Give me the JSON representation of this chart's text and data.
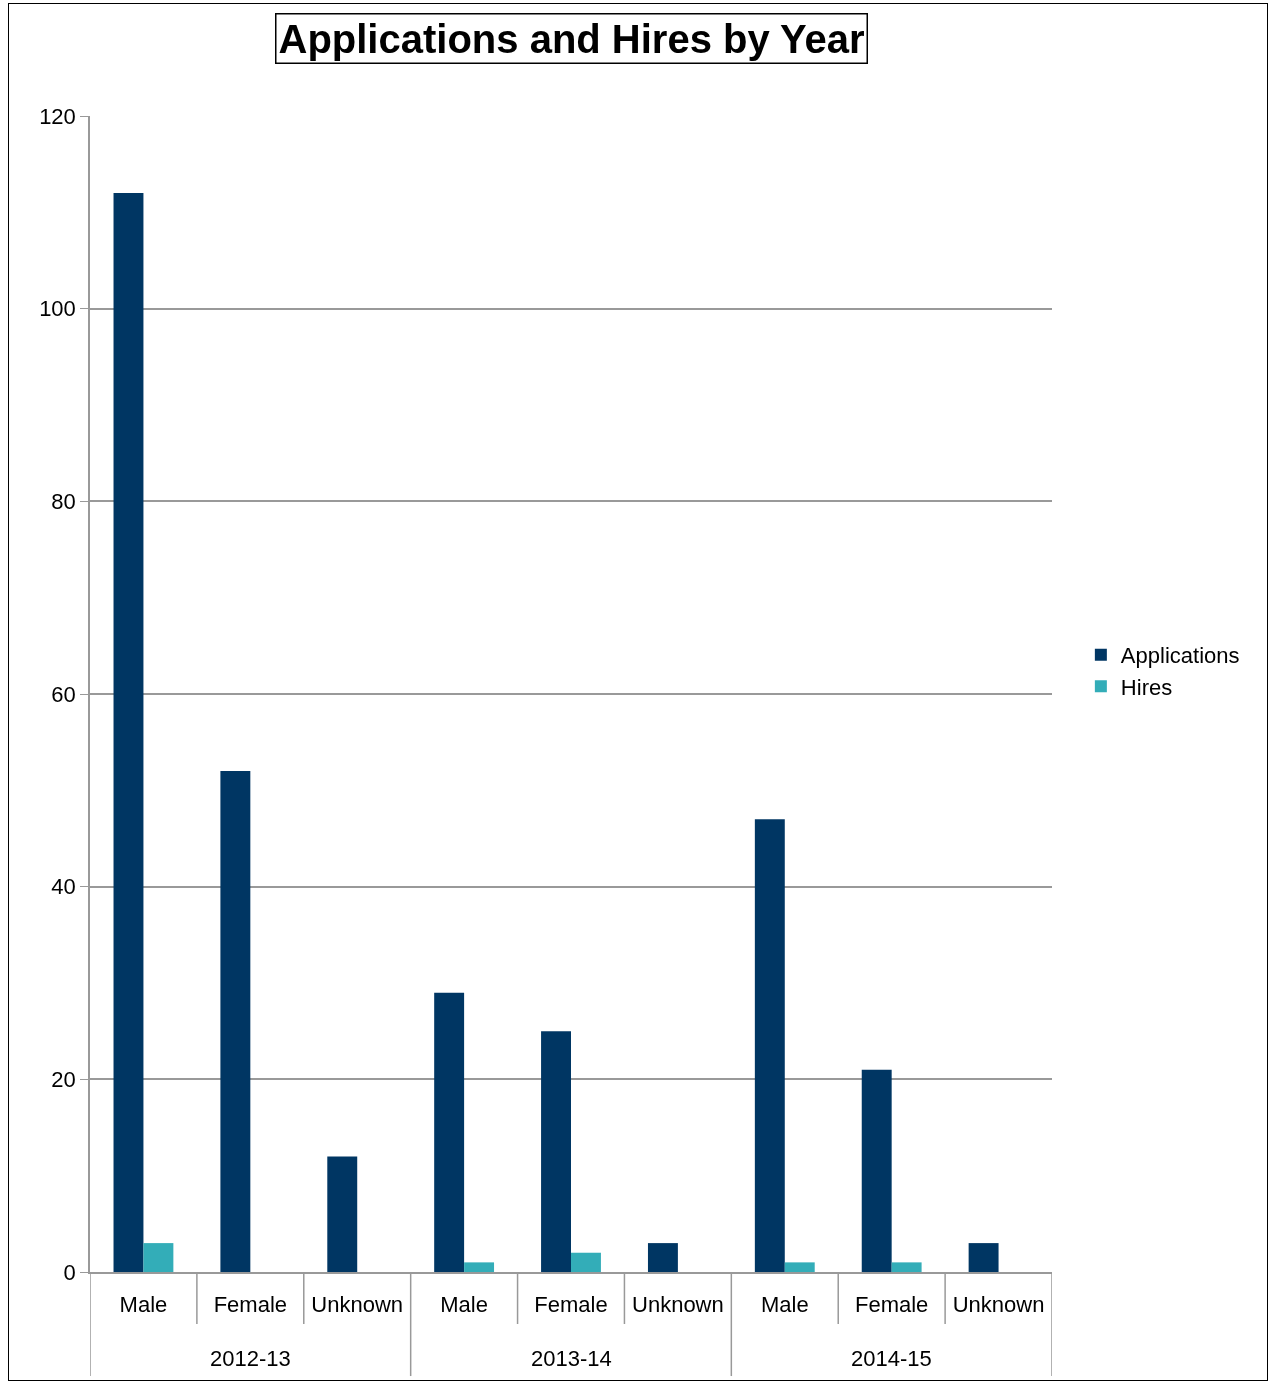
{
  "chart_data": {
    "type": "bar",
    "title": "Applications and Hires by Year",
    "categories": [
      "Male",
      "Female",
      "Unknown",
      "Male",
      "Female",
      "Unknown",
      "Male",
      "Female",
      "Unknown"
    ],
    "series": [
      {
        "name": "Applications",
        "color": "#003663",
        "values": [
          112,
          52,
          12,
          29,
          25,
          3,
          47,
          21,
          3
        ]
      },
      {
        "name": "Hires",
        "color": "#33adb8",
        "values": [
          3,
          0,
          0,
          1,
          2,
          0,
          1,
          1,
          0
        ]
      }
    ],
    "annotations": [
      "2012-13",
      "2013-14",
      "2014-15"
    ],
    "ylim": [
      0,
      120
    ],
    "yticks": [
      0,
      20,
      40,
      60,
      80,
      100,
      120
    ],
    "grid": "y",
    "legend": "right"
  }
}
